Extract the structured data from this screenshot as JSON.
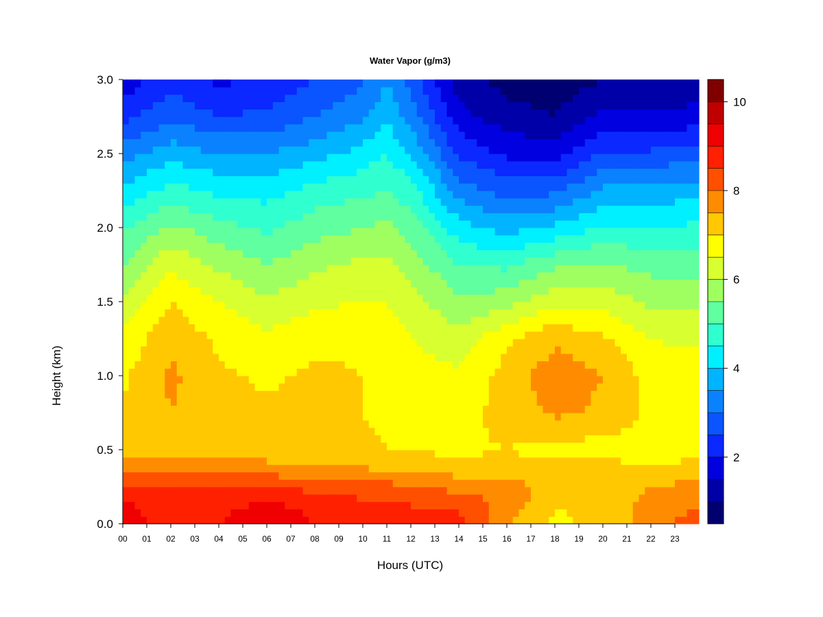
{
  "chart_data": {
    "type": "heatmap",
    "title": "Water Vapor (g/m3)",
    "xlabel": "Hours (UTC)",
    "ylabel": "Height (km)",
    "x_ticks": [
      "00",
      "01",
      "02",
      "03",
      "04",
      "05",
      "06",
      "07",
      "08",
      "09",
      "10",
      "11",
      "12",
      "13",
      "14",
      "15",
      "16",
      "17",
      "18",
      "19",
      "20",
      "21",
      "22",
      "23"
    ],
    "y_ticks": [
      "0.0",
      "0.5",
      "1.0",
      "1.5",
      "2.0",
      "2.5",
      "3.0"
    ],
    "xlim": [
      0,
      24
    ],
    "ylim": [
      0.0,
      3.0
    ],
    "colorbar": {
      "range": [
        0.5,
        10.5
      ],
      "ticks": [
        "2",
        "4",
        "6",
        "8",
        "10"
      ],
      "levels": [
        "#000070",
        "#0000A8",
        "#0000E0",
        "#0A28FF",
        "#0A55FF",
        "#0A82FF",
        "#00B4FF",
        "#00F0FF",
        "#30FFD0",
        "#60FFA0",
        "#A0FF60",
        "#D8FF30",
        "#FFFF00",
        "#FFC800",
        "#FF8C00",
        "#FF5000",
        "#FF2000",
        "#F00000",
        "#C00000",
        "#800000"
      ]
    },
    "x": [
      0,
      2,
      4,
      6,
      8,
      10,
      11,
      12,
      14,
      16,
      18,
      20,
      22,
      23.8
    ],
    "y": [
      0.0,
      0.1,
      0.2,
      0.3,
      0.4,
      0.5,
      0.75,
      1.0,
      1.25,
      1.5,
      1.75,
      2.0,
      2.25,
      2.5,
      2.75,
      3.0
    ],
    "z": [
      [
        9.5,
        8.5,
        9.0,
        9.3,
        9.0,
        8.8,
        8.8,
        8.7,
        8.6,
        7.6,
        6.9,
        7.1,
        7.8,
        8.2
      ],
      [
        9.2,
        8.6,
        8.9,
        9.2,
        8.9,
        8.7,
        8.7,
        8.6,
        8.5,
        7.7,
        7.0,
        7.1,
        7.7,
        8.0
      ],
      [
        8.8,
        8.6,
        8.7,
        8.8,
        8.6,
        8.4,
        8.4,
        8.2,
        8.1,
        7.8,
        7.3,
        7.2,
        7.6,
        7.7
      ],
      [
        8.2,
        8.3,
        8.3,
        8.2,
        8.0,
        7.9,
        7.9,
        7.8,
        7.6,
        7.6,
        7.3,
        7.3,
        7.4,
        7.5
      ],
      [
        7.7,
        7.8,
        7.8,
        7.6,
        7.5,
        7.4,
        7.3,
        7.2,
        7.1,
        7.2,
        7.1,
        7.1,
        7.0,
        7.1
      ],
      [
        7.3,
        7.4,
        7.3,
        7.2,
        7.2,
        7.1,
        7.0,
        7.0,
        6.9,
        7.0,
        6.8,
        6.8,
        6.8,
        6.8
      ],
      [
        7.1,
        7.5,
        7.2,
        7.1,
        7.2,
        7.0,
        6.9,
        6.8,
        6.8,
        7.2,
        7.6,
        7.4,
        6.9,
        6.9
      ],
      [
        6.9,
        7.6,
        7.1,
        6.9,
        7.1,
        7.0,
        6.9,
        6.7,
        6.6,
        7.2,
        7.8,
        7.5,
        6.8,
        6.8
      ],
      [
        6.6,
        7.4,
        6.9,
        6.6,
        6.9,
        6.9,
        6.8,
        6.5,
        6.2,
        6.9,
        7.4,
        7.1,
        6.5,
        6.4
      ],
      [
        6.1,
        7.0,
        6.5,
        6.1,
        6.4,
        6.5,
        6.5,
        6.2,
        5.6,
        5.8,
        6.4,
        6.3,
        5.9,
        5.9
      ],
      [
        5.5,
        6.4,
        5.9,
        5.5,
        5.9,
        6.1,
        6.1,
        5.8,
        5.0,
        4.9,
        5.4,
        5.6,
        5.3,
        5.3
      ],
      [
        4.9,
        5.6,
        5.2,
        4.9,
        5.3,
        5.5,
        5.6,
        5.3,
        4.2,
        3.8,
        4.1,
        4.6,
        4.5,
        4.6
      ],
      [
        4.1,
        4.7,
        4.4,
        4.3,
        4.7,
        4.9,
        5.0,
        4.7,
        3.3,
        2.8,
        2.9,
        3.6,
        3.7,
        3.8
      ],
      [
        3.3,
        3.8,
        3.5,
        3.5,
        3.8,
        4.2,
        4.5,
        4.0,
        2.4,
        1.9,
        1.8,
        2.6,
        2.6,
        2.8
      ],
      [
        2.3,
        2.9,
        2.5,
        2.6,
        3.0,
        3.4,
        3.9,
        3.3,
        1.7,
        1.2,
        1.0,
        1.6,
        1.6,
        1.7
      ],
      [
        1.7,
        2.3,
        1.9,
        2.1,
        2.5,
        2.9,
        3.5,
        2.8,
        1.2,
        0.8,
        0.7,
        1.0,
        1.0,
        1.1
      ]
    ]
  }
}
